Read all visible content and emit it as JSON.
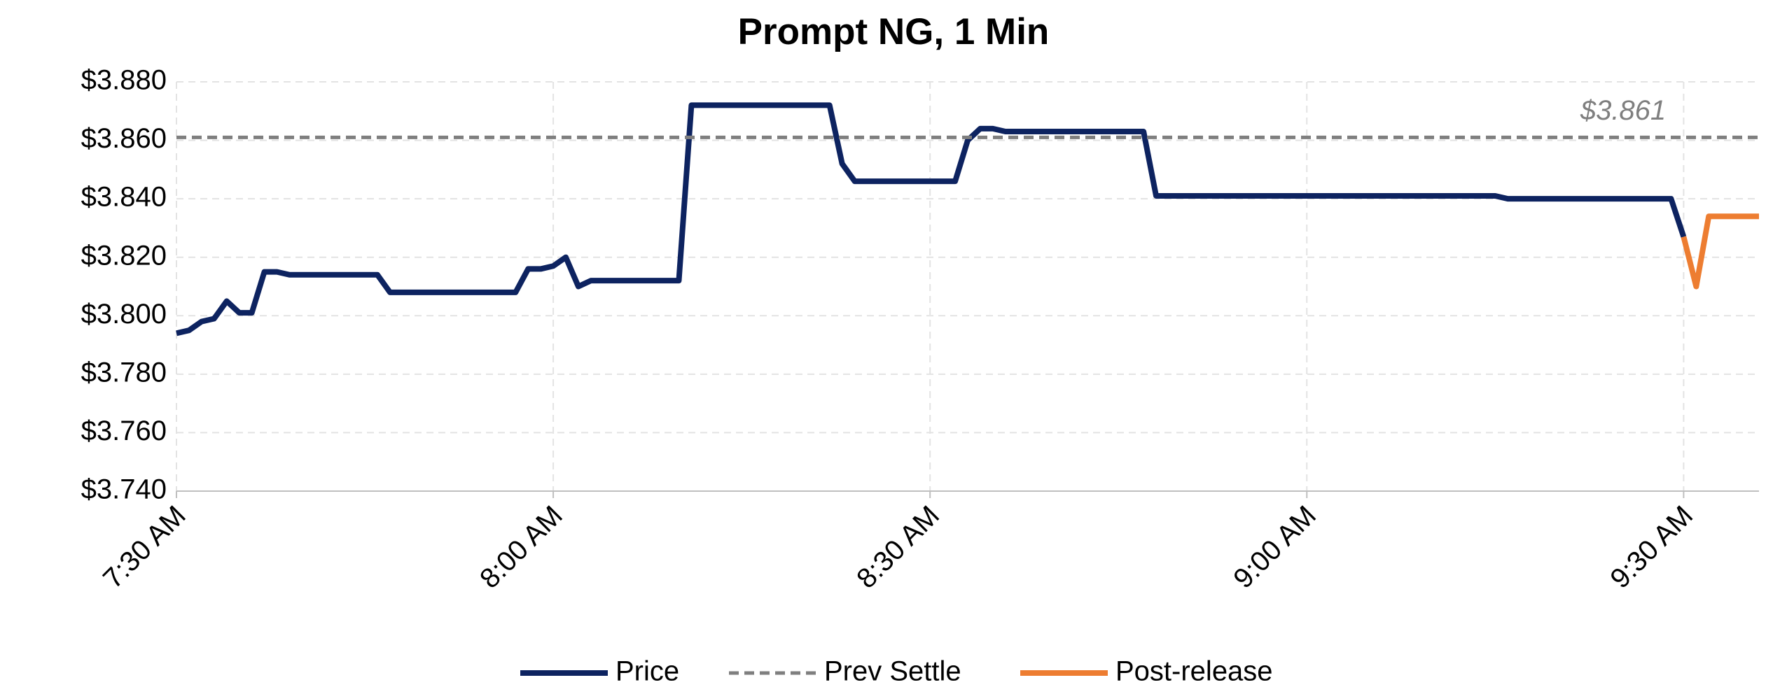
{
  "chart_data": {
    "type": "line",
    "title": "Prompt NG, 1 Min",
    "categories": [
      "7:30 AM",
      null,
      null,
      null,
      null,
      null,
      null,
      null,
      null,
      null,
      null,
      null,
      null,
      null,
      null,
      null,
      null,
      null,
      null,
      null,
      null,
      null,
      null,
      null,
      null,
      null,
      null,
      null,
      null,
      null,
      "8:00 AM",
      null,
      null,
      null,
      null,
      null,
      null,
      null,
      null,
      null,
      null,
      null,
      null,
      null,
      null,
      null,
      null,
      null,
      null,
      null,
      null,
      null,
      null,
      null,
      null,
      null,
      null,
      null,
      null,
      null,
      "8:30 AM",
      null,
      null,
      null,
      null,
      null,
      null,
      null,
      null,
      null,
      null,
      null,
      null,
      null,
      null,
      null,
      null,
      null,
      null,
      null,
      null,
      null,
      null,
      null,
      null,
      null,
      null,
      null,
      null,
      null,
      "9:00 AM",
      null,
      null,
      null,
      null,
      null,
      null,
      null,
      null,
      null,
      null,
      null,
      null,
      null,
      null,
      null,
      null,
      null,
      null,
      null,
      null,
      null,
      null,
      null,
      null,
      null,
      null,
      null,
      null,
      null,
      "9:30 AM",
      null,
      null,
      null,
      null,
      null,
      null
    ],
    "series": [
      {
        "name": "Price",
        "color": "#0d2360",
        "values": [
          3.794,
          3.795,
          3.798,
          3.799,
          3.805,
          3.801,
          3.801,
          3.815,
          3.815,
          3.814,
          3.814,
          3.814,
          3.814,
          3.814,
          3.814,
          3.814,
          3.814,
          3.808,
          3.808,
          3.808,
          3.808,
          3.808,
          3.808,
          3.808,
          3.808,
          3.808,
          3.808,
          3.808,
          3.816,
          3.816,
          3.817,
          3.82,
          3.81,
          3.812,
          3.812,
          3.812,
          3.812,
          3.812,
          3.812,
          3.812,
          3.812,
          3.872,
          3.872,
          3.872,
          3.872,
          3.872,
          3.872,
          3.872,
          3.872,
          3.872,
          3.872,
          3.872,
          3.872,
          3.852,
          3.846,
          3.846,
          3.846,
          3.846,
          3.846,
          3.846,
          3.846,
          3.846,
          3.846,
          3.86,
          3.864,
          3.864,
          3.863,
          3.863,
          3.863,
          3.863,
          3.863,
          3.863,
          3.863,
          3.863,
          3.863,
          3.863,
          3.863,
          3.863,
          3.841,
          3.841,
          3.841,
          3.841,
          3.841,
          3.841,
          3.841,
          3.841,
          3.841,
          3.841,
          3.841,
          3.841,
          3.841,
          3.841,
          3.841,
          3.841,
          3.841,
          3.841,
          3.841,
          3.841,
          3.841,
          3.841,
          3.841,
          3.841,
          3.841,
          3.841,
          3.841,
          3.841,
          3.84,
          3.84,
          3.84,
          3.84,
          3.84,
          3.84,
          3.84,
          3.84,
          3.84,
          3.84,
          3.84,
          3.84,
          3.84,
          3.84,
          3.827,
          null,
          null,
          null,
          null,
          null,
          null
        ]
      },
      {
        "name": "Prev Settle",
        "color": "#7f7f7f",
        "dash": true,
        "value": 3.861,
        "value_label": "$3.861"
      },
      {
        "name": "Post-release",
        "color": "#ed7d31",
        "values": [
          null,
          null,
          null,
          null,
          null,
          null,
          null,
          null,
          null,
          null,
          null,
          null,
          null,
          null,
          null,
          null,
          null,
          null,
          null,
          null,
          null,
          null,
          null,
          null,
          null,
          null,
          null,
          null,
          null,
          null,
          null,
          null,
          null,
          null,
          null,
          null,
          null,
          null,
          null,
          null,
          null,
          null,
          null,
          null,
          null,
          null,
          null,
          null,
          null,
          null,
          null,
          null,
          null,
          null,
          null,
          null,
          null,
          null,
          null,
          null,
          null,
          null,
          null,
          null,
          null,
          null,
          null,
          null,
          null,
          null,
          null,
          null,
          null,
          null,
          null,
          null,
          null,
          null,
          null,
          null,
          null,
          null,
          null,
          null,
          null,
          null,
          null,
          null,
          null,
          null,
          null,
          null,
          null,
          null,
          null,
          null,
          null,
          null,
          null,
          null,
          null,
          null,
          null,
          null,
          null,
          null,
          null,
          null,
          null,
          null,
          null,
          null,
          null,
          null,
          null,
          null,
          null,
          null,
          null,
          null,
          3.827,
          3.81,
          3.834,
          3.834,
          3.834,
          3.834,
          3.834
        ]
      }
    ],
    "ylim": [
      3.74,
      3.88
    ],
    "yticks": [
      {
        "value": 3.74,
        "label": "$3.740"
      },
      {
        "value": 3.76,
        "label": "$3.760"
      },
      {
        "value": 3.78,
        "label": "$3.780"
      },
      {
        "value": 3.8,
        "label": "$3.800"
      },
      {
        "value": 3.82,
        "label": "$3.820"
      },
      {
        "value": 3.84,
        "label": "$3.840"
      },
      {
        "value": 3.86,
        "label": "$3.860"
      },
      {
        "value": 3.88,
        "label": "$3.880"
      }
    ],
    "grid": true,
    "legend": "bottom"
  }
}
